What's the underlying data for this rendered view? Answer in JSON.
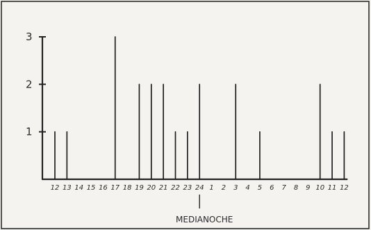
{
  "chart_data": {
    "type": "bar",
    "categories": [
      "12",
      "13",
      "14",
      "15",
      "16",
      "17",
      "18",
      "19",
      "20",
      "21",
      "22",
      "23",
      "24",
      "1",
      "2",
      "3",
      "4",
      "5",
      "6",
      "7",
      "8",
      "9",
      "10",
      "11",
      "12"
    ],
    "values": [
      1,
      1,
      0,
      0,
      0,
      3,
      0,
      2,
      2,
      2,
      1,
      1,
      2,
      0,
      0,
      2,
      0,
      1,
      0,
      0,
      0,
      0,
      2,
      1,
      1
    ],
    "title": "",
    "xlabel": "",
    "ylabel": "",
    "ylim": [
      0,
      3
    ],
    "yticks": [
      "1",
      "2",
      "3"
    ],
    "grid": false,
    "annotation": {
      "category": "24",
      "text": "MEDIANOCHE"
    }
  }
}
